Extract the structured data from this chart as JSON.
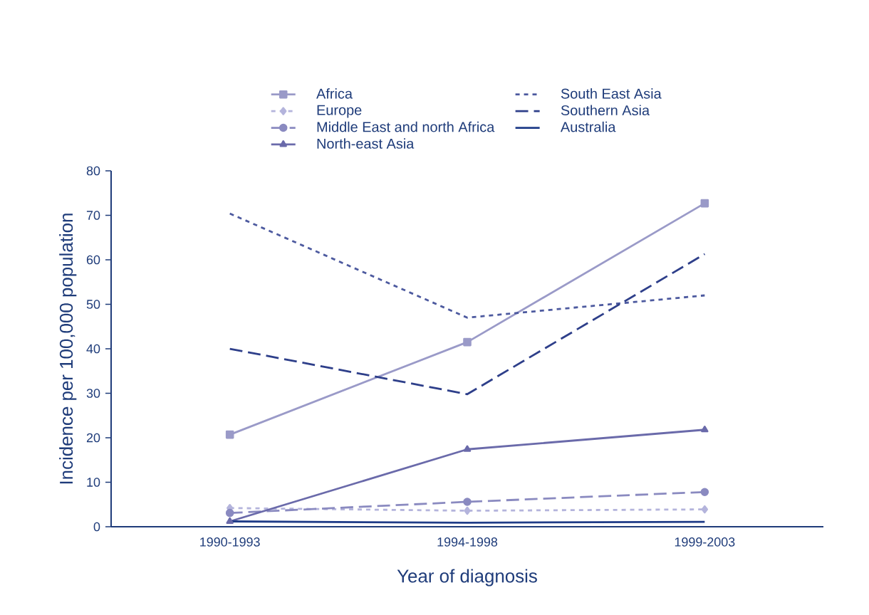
{
  "chart_data": {
    "type": "line",
    "xlabel": "Year of diagnosis",
    "ylabel": "Incidence per 100,000 population",
    "categories": [
      "1990-1993",
      "1994-1998",
      "1999-2003"
    ],
    "ylim": [
      0,
      80
    ],
    "yticks": [
      0,
      10,
      20,
      30,
      40,
      50,
      60,
      70,
      80
    ],
    "grid": false,
    "legend": "top",
    "series": [
      {
        "name": "Africa",
        "color": "#9a9ac8",
        "marker": "square",
        "line_style": "solid",
        "values": [
          20.7,
          41.5,
          72.7
        ]
      },
      {
        "name": "Europe",
        "color": "#b4b4dc",
        "marker": "diamond",
        "line_style": "dotted",
        "values": [
          4.2,
          3.6,
          3.9
        ]
      },
      {
        "name": "Middle East and north Africa",
        "color": "#8a8ac0",
        "marker": "circle",
        "line_style": "dashed",
        "values": [
          3.1,
          5.6,
          7.8
        ]
      },
      {
        "name": "North-east Asia",
        "color": "#6a6aaa",
        "marker": "triangle",
        "line_style": "solid",
        "values": [
          1.2,
          17.4,
          21.8
        ]
      },
      {
        "name": "South East Asia",
        "color": "#4d5a9f",
        "marker": "none",
        "line_style": "dotted",
        "values": [
          70.4,
          47.0,
          52.0
        ]
      },
      {
        "name": "Southern Asia",
        "color": "#2e3f8a",
        "marker": "none",
        "line_style": "dashed",
        "values": [
          40.0,
          29.8,
          61.3
        ]
      },
      {
        "name": "Australia",
        "color": "#1f3c88",
        "marker": "none",
        "line_style": "solid",
        "values": [
          1.2,
          0.9,
          1.1
        ]
      }
    ]
  }
}
